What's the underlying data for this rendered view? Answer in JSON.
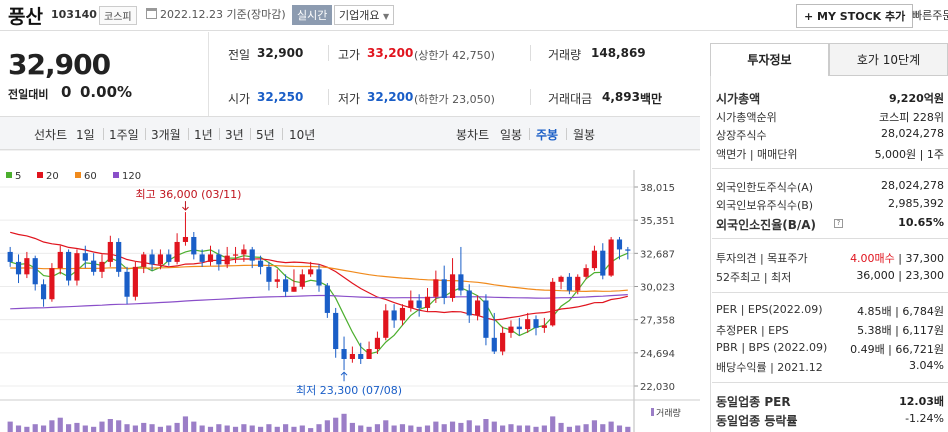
{
  "header": {
    "name": "풍산",
    "code": "103140",
    "market": "코스피",
    "date": "2022.12.23  기준(장마감)",
    "realtime": "실시간",
    "overview": "기업개요",
    "overview_icon": "chevron-down-icon",
    "mystock": "+ MY STOCK 추가",
    "quick": "빠른주문"
  },
  "price": {
    "current": "32,900",
    "change_label": "전일대비",
    "change_value": "0",
    "change_pct": "0.00%"
  },
  "stats": {
    "prev_label": "전일",
    "prev_value": "32,900",
    "high_label": "고가",
    "high_value": "33,200",
    "upper_limit": "(상한가 42,750)",
    "volume_label": "거래량",
    "volume_value": "148,869",
    "open_label": "시가",
    "open_value": "32,250",
    "low_label": "저가",
    "low_value": "32,200",
    "lower_limit": "(하한가 23,050)",
    "amount_label": "거래대금",
    "amount_value": "4,893",
    "amount_unit": "백만"
  },
  "periodbar": {
    "line_label": "선차트",
    "line_periods": [
      "1일",
      "1주일",
      "3개월",
      "1년",
      "3년",
      "5년",
      "10년"
    ],
    "candle_label": "봉차트",
    "candle_periods": [
      "일봉",
      "주봉",
      "월봉"
    ],
    "selected_candle": "주봉"
  },
  "chart_data": {
    "type": "candlestick",
    "interval": "weekly",
    "legend": [
      {
        "name": "5",
        "color": "#4caf2e"
      },
      {
        "name": "20",
        "color": "#e0141e"
      },
      {
        "name": "60",
        "color": "#f08a1c"
      },
      {
        "name": "120",
        "color": "#8a4fc9"
      }
    ],
    "y_ticks": [
      38015,
      35351,
      32687,
      30023,
      27358,
      24694,
      22030
    ],
    "ylim": [
      22030,
      38015
    ],
    "high_annotation": "최고 36,000 (03/11)",
    "low_annotation": "최저 23,300 (07/08)",
    "volume_label": "거래량",
    "candles": [
      [
        32800,
        32000,
        33200,
        31600
      ],
      [
        32000,
        31000,
        32600,
        30300
      ],
      [
        31000,
        32300,
        32800,
        30700
      ],
      [
        32300,
        30200,
        32500,
        29700
      ],
      [
        30200,
        29000,
        30600,
        28400
      ],
      [
        29000,
        31500,
        31900,
        28800
      ],
      [
        31500,
        32800,
        33300,
        31000
      ],
      [
        32800,
        30500,
        33000,
        30100
      ],
      [
        30500,
        32700,
        33000,
        30100
      ],
      [
        32700,
        32100,
        33300,
        31500
      ],
      [
        32100,
        31200,
        32700,
        30900
      ],
      [
        31200,
        32000,
        32600,
        30700
      ],
      [
        32000,
        33600,
        34100,
        31600
      ],
      [
        33600,
        31200,
        33900,
        30800
      ],
      [
        31200,
        29200,
        31600,
        28600
      ],
      [
        29200,
        31600,
        32000,
        28900
      ],
      [
        31600,
        32600,
        32800,
        31100
      ],
      [
        32600,
        31800,
        33000,
        31300
      ],
      [
        31800,
        32600,
        33000,
        31400
      ],
      [
        32600,
        32000,
        33000,
        31700
      ],
      [
        32000,
        33600,
        34300,
        31800
      ],
      [
        33600,
        34000,
        36000,
        33300
      ],
      [
        34000,
        32600,
        34400,
        32200
      ],
      [
        32600,
        32000,
        33000,
        31600
      ],
      [
        32000,
        32600,
        33300,
        31700
      ],
      [
        32600,
        31800,
        33000,
        31300
      ],
      [
        31800,
        32500,
        33200,
        31500
      ],
      [
        32500,
        32600,
        33200,
        31900
      ],
      [
        32600,
        33000,
        33400,
        32000
      ],
      [
        33000,
        32100,
        33200,
        31500
      ],
      [
        32100,
        31600,
        32500,
        31000
      ],
      [
        31600,
        30400,
        32000,
        29700
      ],
      [
        30400,
        30600,
        31400,
        29900
      ],
      [
        30600,
        29600,
        31000,
        29200
      ],
      [
        29600,
        30000,
        31400,
        29600
      ],
      [
        30000,
        31000,
        31400,
        29800
      ],
      [
        31000,
        31400,
        32000,
        30800
      ],
      [
        31400,
        30100,
        31800,
        29600
      ],
      [
        30100,
        27900,
        30300,
        27500
      ],
      [
        27900,
        25000,
        28300,
        24300
      ],
      [
        25000,
        24200,
        26000,
        23300
      ],
      [
        24200,
        24600,
        25200,
        23900
      ],
      [
        24600,
        24200,
        25500,
        23800
      ],
      [
        24200,
        25000,
        25600,
        24200
      ],
      [
        25000,
        25900,
        26400,
        24600
      ],
      [
        25900,
        28100,
        28600,
        25700
      ],
      [
        28100,
        27300,
        28600,
        26700
      ],
      [
        27300,
        28300,
        28600,
        26900
      ],
      [
        28300,
        28900,
        29700,
        28000
      ],
      [
        28900,
        28300,
        29400,
        27600
      ],
      [
        28300,
        29200,
        29900,
        28000
      ],
      [
        29200,
        30600,
        31300,
        28700
      ],
      [
        30600,
        29100,
        31700,
        28600
      ],
      [
        29100,
        31000,
        32300,
        28800
      ],
      [
        31000,
        29700,
        33200,
        29300
      ],
      [
        29700,
        27700,
        30200,
        27100
      ],
      [
        27700,
        28900,
        29300,
        27300
      ],
      [
        28900,
        25900,
        29400,
        25300
      ],
      [
        25900,
        24800,
        27900,
        24600
      ],
      [
        24800,
        26300,
        26800,
        24500
      ],
      [
        26300,
        26800,
        27300,
        25900
      ],
      [
        26800,
        26600,
        27500,
        26100
      ],
      [
        26600,
        27400,
        27900,
        26300
      ],
      [
        27400,
        26700,
        27700,
        26100
      ],
      [
        26700,
        26900,
        27500,
        26300
      ],
      [
        26900,
        30400,
        30700,
        26800
      ],
      [
        30400,
        30800,
        30900,
        29800
      ],
      [
        30800,
        29700,
        31100,
        29400
      ],
      [
        29700,
        30800,
        31000,
        29400
      ],
      [
        30800,
        31500,
        31800,
        30600
      ],
      [
        31500,
        32900,
        33300,
        31300
      ],
      [
        32900,
        30900,
        33500,
        30600
      ],
      [
        30900,
        33800,
        34000,
        30800
      ],
      [
        33800,
        33000,
        34000,
        32200
      ],
      [
        33000,
        32900,
        33200,
        32200
      ]
    ]
  },
  "info": {
    "tabs": [
      "투자정보",
      "호가 10단계"
    ],
    "rows": [
      {
        "k": "시가총액",
        "v": "9,220억원"
      },
      {
        "k": "시가총액순위",
        "v": "코스피 228위"
      },
      {
        "k": "상장주식수",
        "v": "28,024,278"
      },
      {
        "k": "액면가 | 매매단위",
        "v": "5,000원 | 1주"
      },
      {
        "k": "외국인한도주식수(A)",
        "v": "28,024,278"
      },
      {
        "k": "외국인보유주식수(B)",
        "v": "2,985,392"
      },
      {
        "k": "외국인소진율(B/A)",
        "v": "10.65%"
      },
      {
        "k": "투자의견 | 목표주가",
        "v1": "4.00매수",
        "v2": "37,300"
      },
      {
        "k": "52주최고 | 최저",
        "v": "36,000 | 23,300"
      },
      {
        "k": "PER | EPS(2022.09)",
        "v": "4.85배 | 6,784원"
      },
      {
        "k": "추정PER | EPS",
        "v": "5.38배 | 6,117원"
      },
      {
        "k": "PBR | BPS (2022.09)",
        "v": "0.49배 | 66,721원"
      },
      {
        "k": "배당수익률 | 2021.12",
        "v": "3.04%"
      },
      {
        "k": "동일업종 PER",
        "v": "12.03배"
      },
      {
        "k": "동일업종 등락률",
        "v": "-1.24%"
      }
    ]
  }
}
